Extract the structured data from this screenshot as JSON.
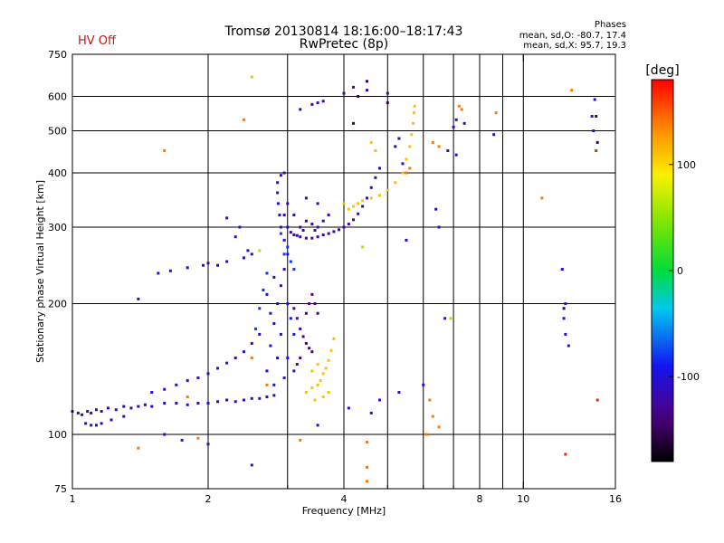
{
  "header": {
    "title_line1": "Tromsø 20130814 18:16:00–18:17:43",
    "title_line2": "RwPretec (8p)",
    "hv_status": "HV Off",
    "phases_title": "Phases",
    "phases_o": "mean, sd,O: -80.7, 17.4",
    "phases_x": "mean, sd,X:  95.7, 19.3"
  },
  "colors": {
    "hv_status": "#cc1111",
    "axes": "#000000",
    "background": "#ffffff"
  },
  "chart_data": {
    "type": "scatter",
    "xlabel": "Frequency [MHz]",
    "ylabel": "Stationary phase Virtual Height [km]",
    "xscale": "log",
    "yscale": "log",
    "xlim": [
      1,
      16
    ],
    "ylim": [
      75,
      750
    ],
    "xticks": [
      1,
      2,
      4,
      8,
      10,
      16
    ],
    "xtick_labels": [
      "1",
      "2",
      "4",
      "8",
      "10",
      "16"
    ],
    "x_minor": [
      3,
      5,
      6,
      7,
      9
    ],
    "yticks": [
      75,
      100,
      200,
      300,
      400,
      500,
      600,
      750
    ],
    "ytick_labels": [
      "75",
      "100",
      "200",
      "300",
      "400",
      "500",
      "600",
      "750"
    ],
    "x_grid": [
      2,
      3,
      4,
      5,
      6,
      7,
      8,
      9,
      10
    ],
    "y_grid": [
      100,
      200,
      300,
      400,
      500,
      600
    ],
    "grid": true,
    "colorbar": {
      "label": "[deg]",
      "ticks": [
        100,
        0,
        -100
      ],
      "tick_labels": [
        "100",
        "0",
        "-100"
      ],
      "range": [
        -180,
        180
      ]
    },
    "series": [
      {
        "phase": -110,
        "points": [
          [
            1.0,
            113
          ],
          [
            1.03,
            112
          ],
          [
            1.05,
            111
          ],
          [
            1.08,
            113
          ],
          [
            1.1,
            112
          ],
          [
            1.13,
            114
          ],
          [
            1.16,
            113
          ],
          [
            1.2,
            115
          ],
          [
            1.25,
            114
          ],
          [
            1.3,
            116
          ],
          [
            1.35,
            115
          ],
          [
            1.4,
            116
          ],
          [
            1.45,
            117
          ],
          [
            1.5,
            116
          ],
          [
            1.6,
            118
          ],
          [
            1.7,
            118
          ],
          [
            1.8,
            117
          ],
          [
            1.9,
            118
          ],
          [
            2.0,
            118
          ],
          [
            2.1,
            119
          ],
          [
            2.2,
            120
          ],
          [
            2.3,
            119
          ],
          [
            2.4,
            120
          ],
          [
            2.5,
            121
          ],
          [
            2.6,
            121
          ],
          [
            2.7,
            122
          ],
          [
            2.8,
            123
          ],
          [
            1.07,
            106
          ],
          [
            1.1,
            105
          ],
          [
            1.13,
            105
          ],
          [
            1.16,
            106
          ],
          [
            1.22,
            108
          ],
          [
            1.3,
            110
          ]
        ]
      },
      {
        "phase": -105,
        "points": [
          [
            1.5,
            125
          ],
          [
            1.6,
            127
          ],
          [
            1.7,
            130
          ],
          [
            1.8,
            133
          ],
          [
            1.9,
            135
          ],
          [
            2.0,
            138
          ],
          [
            2.1,
            142
          ],
          [
            2.2,
            146
          ],
          [
            2.3,
            150
          ],
          [
            2.4,
            155
          ],
          [
            2.5,
            162
          ],
          [
            2.6,
            170
          ],
          [
            1.4,
            205
          ],
          [
            1.55,
            235
          ],
          [
            1.65,
            238
          ],
          [
            1.8,
            242
          ],
          [
            1.95,
            245
          ],
          [
            2.0,
            248
          ],
          [
            2.1,
            245
          ],
          [
            2.2,
            250
          ],
          [
            2.5,
            260
          ],
          [
            2.4,
            255
          ]
        ]
      },
      {
        "phase": -95,
        "points": [
          [
            2.7,
            140
          ],
          [
            2.75,
            160
          ],
          [
            2.8,
            180
          ],
          [
            2.85,
            200
          ],
          [
            2.9,
            220
          ],
          [
            2.95,
            240
          ],
          [
            3.0,
            260
          ],
          [
            2.95,
            280
          ],
          [
            2.9,
            300
          ],
          [
            2.88,
            320
          ],
          [
            2.86,
            340
          ],
          [
            2.85,
            360
          ],
          [
            2.85,
            380
          ],
          [
            2.9,
            395
          ],
          [
            2.8,
            130
          ],
          [
            2.85,
            150
          ],
          [
            2.9,
            170
          ],
          [
            2.75,
            190
          ],
          [
            2.7,
            210
          ],
          [
            2.8,
            230
          ],
          [
            3.0,
            200
          ],
          [
            3.05,
            185
          ],
          [
            3.1,
            170
          ],
          [
            3.0,
            150
          ],
          [
            2.95,
            135
          ],
          [
            3.1,
            140
          ],
          [
            2.3,
            285
          ],
          [
            2.35,
            300
          ],
          [
            2.2,
            315
          ],
          [
            2.45,
            265
          ]
        ]
      },
      {
        "phase": -80,
        "points": [
          [
            2.55,
            175
          ],
          [
            2.6,
            195
          ],
          [
            2.65,
            215
          ],
          [
            2.7,
            235
          ],
          [
            2.95,
            260
          ],
          [
            3.0,
            270
          ],
          [
            2.9,
            290
          ],
          [
            3.05,
            250
          ],
          [
            3.1,
            240
          ]
        ]
      },
      {
        "phase": -120,
        "points": [
          [
            2.95,
            320
          ],
          [
            3.0,
            300
          ],
          [
            3.05,
            292
          ],
          [
            3.1,
            288
          ],
          [
            3.15,
            287
          ],
          [
            3.2,
            285
          ],
          [
            3.3,
            283
          ],
          [
            3.4,
            283
          ],
          [
            3.5,
            285
          ],
          [
            3.6,
            288
          ],
          [
            3.7,
            290
          ],
          [
            3.8,
            293
          ],
          [
            3.9,
            296
          ],
          [
            4.0,
            300
          ],
          [
            4.1,
            305
          ],
          [
            4.2,
            312
          ],
          [
            4.3,
            322
          ],
          [
            4.4,
            335
          ],
          [
            4.5,
            350
          ],
          [
            4.6,
            370
          ],
          [
            4.7,
            390
          ],
          [
            4.8,
            410
          ],
          [
            3.1,
            320
          ],
          [
            3.2,
            300
          ],
          [
            3.3,
            310
          ],
          [
            3.4,
            305
          ],
          [
            3.5,
            300
          ],
          [
            3.6,
            310
          ],
          [
            3.7,
            320
          ],
          [
            3.25,
            295
          ],
          [
            3.45,
            295
          ],
          [
            3.0,
            340
          ],
          [
            3.3,
            350
          ],
          [
            3.5,
            340
          ],
          [
            2.95,
            400
          ],
          [
            3.2,
            560
          ],
          [
            3.4,
            575
          ],
          [
            3.5,
            580
          ],
          [
            3.6,
            585
          ],
          [
            4.0,
            610
          ],
          [
            4.5,
            620
          ],
          [
            5.0,
            610
          ],
          [
            4.2,
            630
          ],
          [
            5.3,
            480
          ],
          [
            5.2,
            460
          ]
        ]
      },
      {
        "phase": -135,
        "points": [
          [
            3.1,
            195
          ],
          [
            3.15,
            185
          ],
          [
            3.2,
            175
          ],
          [
            3.25,
            168
          ],
          [
            3.3,
            162
          ],
          [
            3.35,
            158
          ],
          [
            3.4,
            155
          ],
          [
            3.3,
            190
          ],
          [
            3.35,
            200
          ],
          [
            3.4,
            210
          ],
          [
            3.45,
            200
          ],
          [
            3.5,
            190
          ],
          [
            3.2,
            150
          ],
          [
            3.15,
            145
          ]
        ]
      },
      {
        "phase": 110,
        "points": [
          [
            3.3,
            125
          ],
          [
            3.4,
            128
          ],
          [
            3.5,
            130
          ],
          [
            3.55,
            133
          ],
          [
            3.6,
            138
          ],
          [
            3.65,
            142
          ],
          [
            3.7,
            148
          ],
          [
            3.75,
            156
          ],
          [
            3.8,
            166
          ],
          [
            3.4,
            140
          ],
          [
            3.5,
            145
          ],
          [
            3.45,
            120
          ],
          [
            3.6,
            122
          ],
          [
            3.7,
            125
          ],
          [
            4.0,
            340
          ],
          [
            4.1,
            330
          ],
          [
            4.2,
            335
          ],
          [
            4.3,
            340
          ],
          [
            4.4,
            345
          ],
          [
            4.6,
            350
          ],
          [
            4.8,
            355
          ],
          [
            5.0,
            365
          ],
          [
            5.2,
            380
          ],
          [
            5.4,
            400
          ],
          [
            5.5,
            430
          ],
          [
            5.6,
            460
          ],
          [
            5.65,
            490
          ],
          [
            5.7,
            520
          ],
          [
            5.72,
            550
          ],
          [
            5.74,
            570
          ],
          [
            4.7,
            450
          ],
          [
            4.6,
            470
          ]
        ]
      },
      {
        "phase": 140,
        "points": [
          [
            1.6,
            450
          ],
          [
            2.4,
            530
          ],
          [
            2.5,
            150
          ],
          [
            2.7,
            130
          ],
          [
            5.5,
            400
          ],
          [
            5.6,
            410
          ],
          [
            6.3,
            470
          ],
          [
            6.5,
            460
          ],
          [
            7.2,
            570
          ],
          [
            7.3,
            560
          ],
          [
            8.7,
            550
          ],
          [
            12.8,
            620
          ],
          [
            11,
            350
          ],
          [
            6.2,
            120
          ],
          [
            6.3,
            110
          ],
          [
            6.5,
            104
          ],
          [
            6.1,
            100
          ],
          [
            4.5,
            96
          ],
          [
            4.5,
            84
          ],
          [
            4.5,
            78
          ],
          [
            3.2,
            97
          ],
          [
            1.8,
            122
          ],
          [
            1.9,
            98
          ],
          [
            1.4,
            93
          ]
        ]
      },
      {
        "phase": -100,
        "points": [
          [
            6.4,
            330
          ],
          [
            6.5,
            300
          ],
          [
            6.8,
            450
          ],
          [
            7.0,
            510
          ],
          [
            7.1,
            530
          ],
          [
            7.4,
            520
          ],
          [
            8.6,
            490
          ],
          [
            7.1,
            440
          ],
          [
            5.4,
            420
          ],
          [
            5.5,
            280
          ],
          [
            6.7,
            185
          ],
          [
            6.0,
            130
          ],
          [
            5.3,
            125
          ],
          [
            4.8,
            120
          ],
          [
            4.1,
            115
          ],
          [
            4.6,
            112
          ],
          [
            3.5,
            105
          ],
          [
            2.0,
            95
          ],
          [
            2.5,
            85
          ],
          [
            1.75,
            97
          ],
          [
            1.6,
            100
          ],
          [
            12.2,
            240
          ],
          [
            12.4,
            200
          ],
          [
            12.6,
            160
          ],
          [
            14.3,
            500
          ],
          [
            14.2,
            540
          ],
          [
            14.4,
            590
          ],
          [
            12.3,
            185
          ],
          [
            12.4,
            170
          ]
        ]
      },
      {
        "phase": -150,
        "points": [
          [
            4.2,
            520
          ],
          [
            4.3,
            600
          ],
          [
            4.5,
            650
          ],
          [
            5.0,
            580
          ],
          [
            12.3,
            195
          ],
          [
            14.5,
            540
          ],
          [
            14.6,
            470
          ]
        ]
      },
      {
        "phase": 60,
        "points": [
          [
            2.5,
            665
          ],
          [
            2.6,
            265
          ],
          [
            4.4,
            270
          ],
          [
            6.9,
            185
          ]
        ]
      },
      {
        "phase": 170,
        "points": [
          [
            14.5,
            450
          ],
          [
            12.4,
            90
          ],
          [
            14.6,
            120
          ]
        ]
      }
    ]
  }
}
